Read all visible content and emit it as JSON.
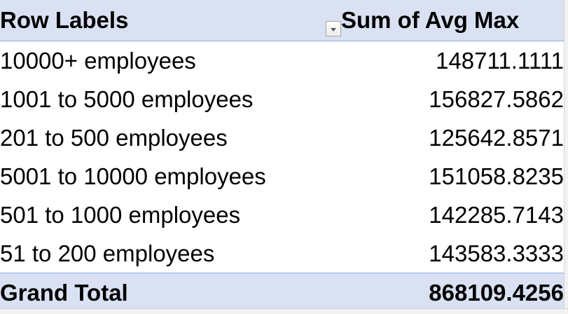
{
  "pivot": {
    "header": {
      "row_labels": "Row Labels",
      "value_field": "Sum of Avg Max",
      "filter_icon": "dropdown-filter-icon"
    },
    "rows": [
      {
        "label": "10000+ employees",
        "value": "148711.1111"
      },
      {
        "label": "1001 to 5000 employees",
        "value": "156827.5862"
      },
      {
        "label": "201 to 500 employees",
        "value": "125642.8571"
      },
      {
        "label": "5001 to 10000 employees",
        "value": "151058.8235"
      },
      {
        "label": "501 to 1000 employees",
        "value": "142285.7143"
      },
      {
        "label": "51 to 200 employees",
        "value": "143583.3333"
      }
    ],
    "grand_total": {
      "label": "Grand Total",
      "value": "868109.4256"
    },
    "colors": {
      "header_fill": "#d9e1f2",
      "border": "#8ea9db",
      "text": "#000000"
    }
  }
}
